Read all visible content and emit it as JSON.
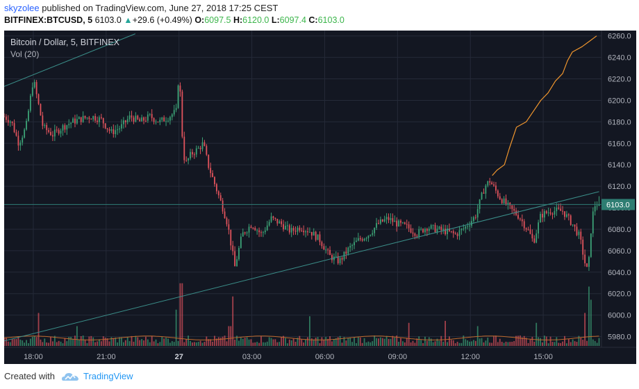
{
  "header": {
    "author": "skyzolee",
    "published": "published on TradingView.com, June 27, 2018 17:25 CEST",
    "symbol": "BITFINEX:BTCUSD, 5",
    "last": "6103.0",
    "change": "+29.6 (+0.49%)",
    "o_label": "O:",
    "o": "6097.5",
    "h_label": "H:",
    "h": "6120.0",
    "l_label": "L:",
    "l": "6097.4",
    "c_label": "C:",
    "c": "6103.0"
  },
  "legend": {
    "title": "Bitcoin / Dollar, 5, BITFINEX",
    "indicator": "Vol (20)"
  },
  "price_tag": "6103.0",
  "footer": {
    "created": "Created with",
    "brand": "TradingView"
  },
  "colors": {
    "background": "#131722",
    "up": "#3ca176",
    "down": "#e0535c",
    "grid": "#252a38",
    "text": "#b2b5be",
    "price_line": "#2f7d77",
    "trendline": "#3b8f8a",
    "projection": "#f0962e",
    "vol_ma": "#c06a2c"
  },
  "chart_data": {
    "type": "candlestick",
    "title": "Bitcoin / Dollar, 5, BITFINEX",
    "ylim": [
      5970,
      6265
    ],
    "y_ticks": [
      5980,
      6000,
      6020,
      6040,
      6060,
      6080,
      6100,
      6120,
      6140,
      6160,
      6180,
      6200,
      6220,
      6240,
      6260
    ],
    "x_ticks": [
      "18:00",
      "21:00",
      "27",
      "03:00",
      "06:00",
      "09:00",
      "12:00",
      "15:00"
    ],
    "x_tick_times": [
      0,
      3,
      6,
      9,
      12,
      15,
      18,
      21
    ],
    "x_range_hours": [
      -1.2,
      23.4
    ],
    "last_price": 6103.0,
    "price_path": [
      [
        -1.2,
        6185
      ],
      [
        -0.9,
        6180
      ],
      [
        -0.6,
        6160
      ],
      [
        -0.3,
        6175
      ],
      [
        0.0,
        6220
      ],
      [
        0.4,
        6175
      ],
      [
        0.8,
        6168
      ],
      [
        1.2,
        6175
      ],
      [
        1.6,
        6180
      ],
      [
        2.0,
        6183
      ],
      [
        2.4,
        6185
      ],
      [
        2.8,
        6182
      ],
      [
        3.2,
        6170
      ],
      [
        3.6,
        6175
      ],
      [
        4.0,
        6185
      ],
      [
        4.4,
        6180
      ],
      [
        4.8,
        6185
      ],
      [
        5.2,
        6180
      ],
      [
        5.6,
        6185
      ],
      [
        5.9,
        6190
      ],
      [
        6.0,
        6230
      ],
      [
        6.15,
        6160
      ],
      [
        6.25,
        6140
      ],
      [
        6.5,
        6150
      ],
      [
        6.8,
        6155
      ],
      [
        7.0,
        6160
      ],
      [
        7.2,
        6140
      ],
      [
        7.5,
        6120
      ],
      [
        7.8,
        6100
      ],
      [
        8.0,
        6085
      ],
      [
        8.3,
        6045
      ],
      [
        8.6,
        6075
      ],
      [
        9.0,
        6085
      ],
      [
        9.4,
        6075
      ],
      [
        9.8,
        6090
      ],
      [
        10.2,
        6085
      ],
      [
        10.6,
        6078
      ],
      [
        11.0,
        6082
      ],
      [
        11.4,
        6078
      ],
      [
        11.8,
        6070
      ],
      [
        12.2,
        6055
      ],
      [
        12.6,
        6050
      ],
      [
        13.0,
        6062
      ],
      [
        13.4,
        6070
      ],
      [
        13.8,
        6075
      ],
      [
        14.2,
        6085
      ],
      [
        14.6,
        6090
      ],
      [
        15.0,
        6085
      ],
      [
        15.4,
        6082
      ],
      [
        15.8,
        6076
      ],
      [
        16.2,
        6082
      ],
      [
        16.6,
        6080
      ],
      [
        17.0,
        6078
      ],
      [
        17.4,
        6075
      ],
      [
        17.8,
        6082
      ],
      [
        18.2,
        6092
      ],
      [
        18.6,
        6120
      ],
      [
        18.8,
        6125
      ],
      [
        19.2,
        6110
      ],
      [
        19.6,
        6100
      ],
      [
        20.0,
        6092
      ],
      [
        20.4,
        6078
      ],
      [
        20.6,
        6068
      ],
      [
        20.9,
        6093
      ],
      [
        21.3,
        6097
      ],
      [
        21.8,
        6097
      ],
      [
        22.2,
        6085
      ],
      [
        22.5,
        6073
      ],
      [
        22.75,
        6045
      ],
      [
        22.85,
        6040
      ],
      [
        23.0,
        6090
      ],
      [
        23.15,
        6104
      ],
      [
        23.3,
        6103
      ]
    ],
    "trendlines": [
      {
        "points": [
          [
            -1.2,
            6213
          ],
          [
            4.2,
            6262
          ]
        ]
      },
      {
        "points": [
          [
            -1.2,
            5976
          ],
          [
            23.3,
            6115
          ]
        ]
      }
    ],
    "projection": [
      [
        18.9,
        6130
      ],
      [
        19.1,
        6135
      ],
      [
        19.4,
        6140
      ],
      [
        19.6,
        6155
      ],
      [
        19.9,
        6175
      ],
      [
        20.3,
        6180
      ],
      [
        20.6,
        6190
      ],
      [
        20.9,
        6200
      ],
      [
        21.2,
        6207
      ],
      [
        21.5,
        6218
      ],
      [
        21.8,
        6225
      ],
      [
        22.0,
        6237
      ],
      [
        22.2,
        6245
      ],
      [
        22.6,
        6250
      ],
      [
        22.9,
        6255
      ],
      [
        23.2,
        6260
      ]
    ],
    "volume_spikes": [
      [
        0.2,
        0.5
      ],
      [
        1.8,
        0.3
      ],
      [
        5.9,
        0.55
      ],
      [
        6.1,
        0.95
      ],
      [
        8.1,
        0.3
      ],
      [
        8.2,
        0.75
      ],
      [
        11.4,
        0.45
      ],
      [
        15.5,
        0.35
      ],
      [
        17.0,
        0.38
      ],
      [
        18.3,
        0.3
      ],
      [
        20.7,
        0.35
      ],
      [
        22.75,
        0.5
      ],
      [
        22.85,
        0.9
      ],
      [
        22.95,
        0.7
      ]
    ]
  }
}
